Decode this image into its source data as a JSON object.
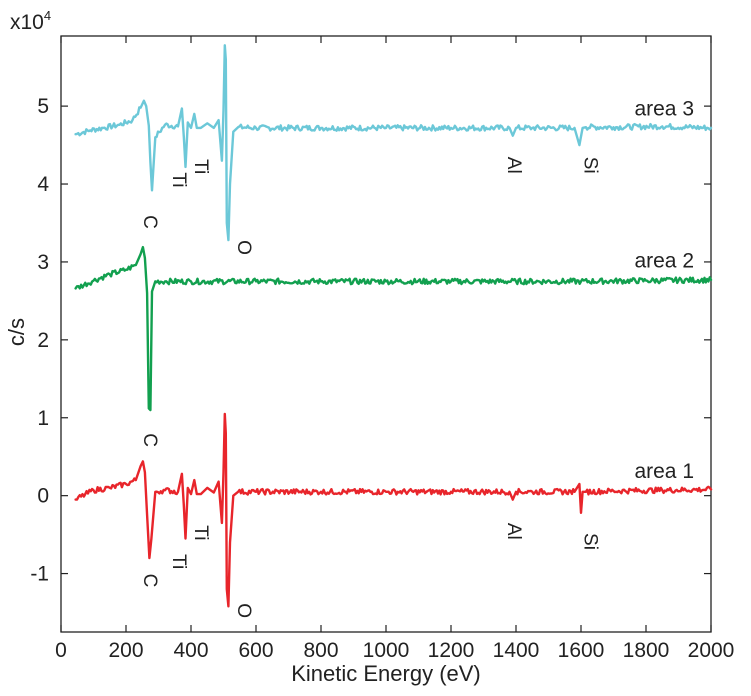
{
  "chart_data": {
    "type": "line",
    "xlabel": "Kinetic Energy (eV)",
    "ylabel": "c/s",
    "y_multiplier": "x10",
    "y_multiplier_exponent": "4",
    "xlim": [
      0,
      2000
    ],
    "ylim": [
      -1.75,
      5.9
    ],
    "x_ticks": [
      0,
      200,
      400,
      600,
      800,
      1000,
      1200,
      1400,
      1600,
      1800,
      2000
    ],
    "y_ticks": [
      -1,
      0,
      1,
      2,
      3,
      4,
      5
    ],
    "grid": false,
    "series": [
      {
        "name": "area 3",
        "color": "#6cc8d8",
        "baseline": 4.7,
        "x": [
          45,
          90,
          130,
          180,
          220,
          245,
          255,
          262,
          270,
          275,
          280,
          290,
          320,
          360,
          372,
          378,
          383,
          390,
          400,
          410,
          418,
          430,
          450,
          470,
          485,
          495,
          500,
          504,
          507,
          510,
          515,
          520,
          530,
          545,
          600,
          800,
          1000,
          1200,
          1380,
          1390,
          1400,
          1450,
          1580,
          1595,
          1605,
          1615,
          1700,
          1850,
          2000
        ],
        "y": [
          4.64,
          4.69,
          4.72,
          4.76,
          4.82,
          4.98,
          5.07,
          5.0,
          4.75,
          4.28,
          3.92,
          4.6,
          4.76,
          4.74,
          4.97,
          4.61,
          4.22,
          4.79,
          4.72,
          4.9,
          4.72,
          4.72,
          4.78,
          4.72,
          4.82,
          4.3,
          4.95,
          5.78,
          5.6,
          3.5,
          3.28,
          4.0,
          4.67,
          4.73,
          4.72,
          4.72,
          4.72,
          4.72,
          4.72,
          4.62,
          4.72,
          4.72,
          4.72,
          4.5,
          4.72,
          4.73,
          4.73,
          4.74,
          4.72
        ]
      },
      {
        "name": "area 2",
        "color": "#12a04f",
        "baseline": 2.75,
        "x": [
          45,
          100,
          150,
          200,
          230,
          245,
          252,
          258,
          265,
          270,
          275,
          280,
          290,
          320,
          400,
          600,
          800,
          1000,
          1200,
          1400,
          1600,
          1800,
          2000
        ],
        "y": [
          2.66,
          2.76,
          2.84,
          2.9,
          2.96,
          3.1,
          3.19,
          3.05,
          2.6,
          1.12,
          1.1,
          2.62,
          2.75,
          2.75,
          2.75,
          2.75,
          2.75,
          2.75,
          2.75,
          2.75,
          2.75,
          2.76,
          2.77
        ]
      },
      {
        "name": "area 1",
        "color": "#e8252b",
        "baseline": 0.05,
        "x": [
          45,
          100,
          150,
          200,
          230,
          245,
          252,
          258,
          265,
          272,
          278,
          290,
          320,
          360,
          372,
          378,
          383,
          390,
          400,
          410,
          418,
          430,
          450,
          470,
          485,
          495,
          500,
          504,
          507,
          510,
          515,
          520,
          530,
          545,
          600,
          800,
          1000,
          1200,
          1380,
          1390,
          1400,
          1450,
          1580,
          1595,
          1600,
          1605,
          1615,
          1700,
          1850,
          2000
        ],
        "y": [
          -0.05,
          0.07,
          0.1,
          0.15,
          0.2,
          0.38,
          0.44,
          0.3,
          -0.25,
          -0.8,
          -0.55,
          0.05,
          0.07,
          0.05,
          0.28,
          -0.12,
          -0.55,
          0.1,
          0.02,
          0.2,
          0.02,
          0.02,
          0.1,
          0.04,
          0.18,
          -0.35,
          0.3,
          1.05,
          0.8,
          -1.2,
          -1.42,
          -0.6,
          0.0,
          0.05,
          0.05,
          0.05,
          0.05,
          0.05,
          0.05,
          -0.05,
          0.05,
          0.05,
          0.05,
          0.15,
          -0.22,
          0.05,
          0.05,
          0.06,
          0.07,
          0.08
        ]
      }
    ],
    "peak_labels": [
      {
        "text": "C",
        "x": 255,
        "y": 3.6,
        "series": "area 3"
      },
      {
        "text": "Ti",
        "x": 345,
        "y": 4.15,
        "series": "area 3"
      },
      {
        "text": "Ti",
        "x": 412,
        "y": 4.32,
        "series": "area 3"
      },
      {
        "text": "O",
        "x": 545,
        "y": 3.28,
        "series": "area 3"
      },
      {
        "text": "Al",
        "x": 1375,
        "y": 4.35,
        "series": "area 3"
      },
      {
        "text": "Si",
        "x": 1610,
        "y": 4.35,
        "series": "area 3"
      },
      {
        "text": "C",
        "x": 255,
        "y": 0.8,
        "series": "area 2"
      },
      {
        "text": "C",
        "x": 255,
        "y": -1.0,
        "series": "area 1"
      },
      {
        "text": "Ti",
        "x": 345,
        "y": -0.75,
        "series": "area 1"
      },
      {
        "text": "Ti",
        "x": 412,
        "y": -0.38,
        "series": "area 1"
      },
      {
        "text": "O",
        "x": 545,
        "y": -1.38,
        "series": "area 1"
      },
      {
        "text": "Al",
        "x": 1375,
        "y": -0.35,
        "series": "area 1"
      },
      {
        "text": "Si",
        "x": 1610,
        "y": -0.48,
        "series": "area 1"
      }
    ]
  }
}
